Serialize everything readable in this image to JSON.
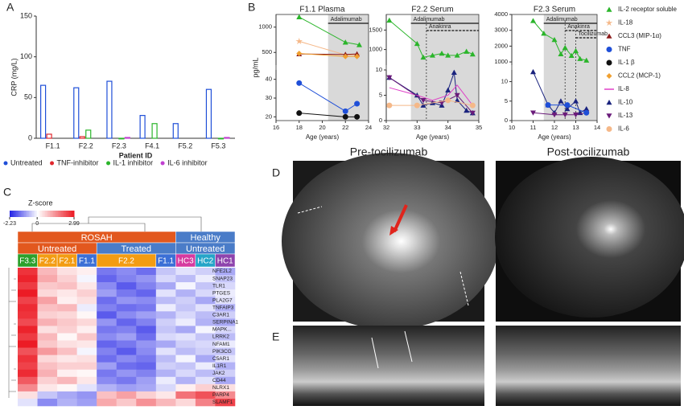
{
  "panels": {
    "a": "A",
    "b": "B",
    "c": "C",
    "d": "D",
    "e": "E"
  },
  "chart_data": [
    {
      "type": "bar",
      "ylabel": "CRP (mg/L)",
      "xlabel": "Patient ID",
      "categories": [
        "F1.1",
        "F2.2",
        "F2.3",
        "F4.1",
        "F5.2",
        "F5.3"
      ],
      "ylim": [
        0,
        150
      ],
      "yticks": [
        0,
        50,
        100,
        150
      ],
      "series": [
        {
          "name": "Untreated",
          "color": "#1f4fd8",
          "values": [
            65,
            62,
            70,
            28,
            18,
            60
          ]
        },
        {
          "name": "TNF-inhibitor",
          "color": "#e0282e",
          "values": [
            5,
            2,
            null,
            null,
            null,
            null
          ]
        },
        {
          "name": "IL-1 inhibitor",
          "color": "#2bb52b",
          "values": [
            null,
            10,
            0,
            18,
            null,
            0
          ]
        },
        {
          "name": "IL-6 inhibitor",
          "color": "#c040d0",
          "values": [
            null,
            null,
            1,
            null,
            null,
            1
          ]
        }
      ]
    },
    {
      "type": "line",
      "title": "F1.1 Plasma",
      "ylabel": "pg/mL",
      "xlabel": "Age (years)",
      "xlim": [
        16,
        24
      ],
      "xticks": [
        16,
        18,
        20,
        22,
        24
      ],
      "ysegments": [
        {
          "ylim": [
            18,
            45
          ],
          "yticks": [
            20,
            30,
            40
          ]
        },
        {
          "ylim": [
            250,
            1250
          ],
          "yticks": [
            500,
            1000
          ]
        }
      ],
      "drugs": [
        {
          "label": "Adalimumab",
          "from": 20.5,
          "to": 24
        }
      ],
      "series": [
        {
          "color": "#2bb52b",
          "marker": "triangle",
          "x": [
            18,
            22,
            23.2
          ],
          "values": [
            1200,
            700,
            650
          ]
        },
        {
          "color": "#f5b888",
          "marker": "star",
          "x": [
            18,
            22,
            23
          ],
          "values": [
            720,
            450,
            450
          ]
        },
        {
          "color": "#8b1a1a",
          "marker": "triangle",
          "x": [
            18,
            22,
            23
          ],
          "values": [
            470,
            460,
            470
          ]
        },
        {
          "color": "#f0a030",
          "marker": "diamond",
          "x": [
            18,
            22,
            23
          ],
          "values": [
            480,
            420,
            420
          ]
        },
        {
          "color": "#1f4fd8",
          "marker": "circle",
          "x": [
            18,
            22,
            23
          ],
          "values": [
            38,
            23,
            27
          ]
        },
        {
          "color": "#111111",
          "marker": "circle",
          "x": [
            18,
            22,
            23
          ],
          "values": [
            22,
            20,
            20
          ]
        }
      ]
    },
    {
      "type": "line",
      "title": "F2.2 Serum",
      "xlabel": "Age (years)",
      "xlim": [
        32,
        35
      ],
      "xticks": [
        32,
        33,
        34,
        35
      ],
      "ysegments": [
        {
          "ylim": [
            0,
            10
          ],
          "yticks": [
            0,
            5,
            10
          ]
        },
        {
          "ylim": [
            600,
            1900
          ],
          "yticks": [
            1000,
            1500
          ]
        }
      ],
      "drugs": [
        {
          "label": "Adalimumab",
          "from": 32.8,
          "to": 35
        },
        {
          "label": "Anakinra",
          "from": 33.3,
          "to": 35
        }
      ],
      "series": [
        {
          "color": "#2bb52b",
          "marker": "triangle",
          "x": [
            32.1,
            33,
            33.2,
            33.5,
            33.8,
            34,
            34.3,
            34.6,
            34.8
          ],
          "values": [
            1750,
            1150,
            800,
            850,
            900,
            850,
            850,
            950,
            880
          ]
        },
        {
          "color": "#1a237e",
          "marker": "triangle",
          "x": [
            32.1,
            33,
            33.2,
            33.5,
            33.8,
            34,
            34.2,
            34.3,
            34.6,
            34.8
          ],
          "values": [
            8.5,
            5,
            3,
            3.5,
            3,
            6,
            9.5,
            4,
            2,
            1.5
          ]
        },
        {
          "color": "#e040c8",
          "marker": "none",
          "x": [
            32.1,
            33,
            33.5,
            34,
            34.3,
            34.8
          ],
          "values": [
            6.5,
            5,
            4,
            5,
            7,
            3
          ]
        },
        {
          "color": "#6a1b7a",
          "marker": "tridown",
          "x": [
            32.1,
            33.2,
            33.8,
            34.3,
            34.8
          ],
          "values": [
            8.5,
            4,
            3.5,
            5,
            1.5
          ]
        },
        {
          "color": "#f5b888",
          "marker": "circle",
          "x": [
            32.1,
            33,
            34,
            34.8
          ],
          "values": [
            3,
            3,
            4,
            3
          ]
        }
      ]
    },
    {
      "type": "line",
      "title": "F2.3 Serum",
      "xlabel": "Age (years)",
      "xlim": [
        10,
        14
      ],
      "xticks": [
        10,
        11,
        12,
        13,
        14
      ],
      "ysegments": [
        {
          "ylim": [
            0,
            13
          ],
          "yticks": [
            0,
            5,
            10
          ]
        },
        {
          "ylim": [
            800,
            4000
          ],
          "yticks": [
            1000,
            2000,
            3000,
            4000
          ]
        }
      ],
      "drugs": [
        {
          "label": "Adalimumab",
          "from": 11.5,
          "to": 14
        },
        {
          "label": "Anakinra",
          "from": 12.5,
          "to": 14
        },
        {
          "label": "Tocilizumab",
          "from": 13,
          "to": 14
        }
      ],
      "series": [
        {
          "color": "#2bb52b",
          "marker": "triangle",
          "x": [
            11,
            11.5,
            12,
            12.3,
            12.5,
            12.8,
            13,
            13.2,
            13.5
          ],
          "values": [
            3600,
            2800,
            2400,
            1500,
            1900,
            1400,
            1700,
            1200,
            1100
          ]
        },
        {
          "color": "#1a237e",
          "marker": "triangle",
          "x": [
            11,
            11.7,
            12,
            12.3,
            12.6,
            13,
            13.2,
            13.5
          ],
          "values": [
            12.5,
            4,
            2,
            5,
            3,
            5,
            2,
            3
          ]
        },
        {
          "color": "#6a1b7a",
          "marker": "tridown",
          "x": [
            11,
            12,
            12.5,
            13,
            13.5
          ],
          "values": [
            2,
            1.5,
            1.5,
            1.5,
            2
          ]
        },
        {
          "color": "#1f4fd8",
          "marker": "circle",
          "x": [
            11.7,
            12.6,
            13.5
          ],
          "values": [
            4,
            4,
            2
          ]
        }
      ]
    }
  ],
  "legend_b": [
    {
      "name": "IL-2 receptor soluble",
      "color": "#2bb52b",
      "marker": "triangle"
    },
    {
      "name": "IL-18",
      "color": "#f5b888",
      "marker": "star"
    },
    {
      "name": "CCL3 (MIP-1α)",
      "color": "#8b1a1a",
      "marker": "triangle"
    },
    {
      "name": "TNF",
      "color": "#1f4fd8",
      "marker": "circle"
    },
    {
      "name": "IL-1 β",
      "color": "#111111",
      "marker": "circle"
    },
    {
      "name": "CCL2 (MCP-1)",
      "color": "#f0a030",
      "marker": "diamond"
    },
    {
      "name": "IL-8",
      "color": "#e040c8",
      "marker": "none"
    },
    {
      "name": "IL-10",
      "color": "#1a237e",
      "marker": "triangle"
    },
    {
      "name": "IL-13",
      "color": "#6a1b7a",
      "marker": "tridown"
    },
    {
      "name": "IL-6",
      "color": "#f5b888",
      "marker": "circle"
    }
  ],
  "heatmap": {
    "colorbar_title": "Z-score",
    "zlim": [
      -2.23,
      2.99
    ],
    "zticks": [
      {
        "value": -2.23,
        "label": "-2.23"
      },
      0,
      {
        "value": 2.99,
        "label": "2.99"
      }
    ],
    "groups": [
      {
        "label": "ROSAH",
        "span": 8,
        "color": "#e2581e"
      },
      {
        "label": "Healthy",
        "span": 3,
        "color": "#4a7cc8"
      }
    ],
    "subgroups": [
      {
        "label": "Untreated",
        "span": 4,
        "color": "#e2581e"
      },
      {
        "label": "Treated",
        "span": 4,
        "color": "#4a7cc8"
      },
      {
        "label": "Untreated",
        "span": 3,
        "color": "#4a7cc8"
      }
    ],
    "columns": [
      {
        "label": "F3.3",
        "span": 1,
        "color": "#2ca02c"
      },
      {
        "label": "F2.2",
        "span": 1,
        "color": "#f39c12"
      },
      {
        "label": "F2.1",
        "span": 1,
        "color": "#f39c12"
      },
      {
        "label": "F1.1",
        "span": 1,
        "color": "#3b6fd6"
      },
      {
        "label": "F2.2",
        "span": 3,
        "color": "#f39c12"
      },
      {
        "label": "F1.1",
        "span": 1,
        "color": "#3b6fd6"
      },
      {
        "label": "HC3",
        "span": 1,
        "color": "#d63aa0"
      },
      {
        "label": "HC2",
        "span": 1,
        "color": "#25a5c8"
      },
      {
        "label": "HC1",
        "span": 1,
        "color": "#8e44ad"
      }
    ],
    "genes": [
      "NFE2L2",
      "SNAP23",
      "TLR1",
      "PTGES",
      "PLA2G7",
      "TNFAIP3",
      "C3AR1",
      "SERPINA1",
      "MAPK...",
      "LRRK2",
      "NFAM1",
      "PIK3CG",
      "C5AR1",
      "IL1R1",
      "JAK2",
      "CD44",
      "NLRX1",
      "PARP4",
      "SLAMF1"
    ],
    "rows": [
      [
        2.6,
        0.9,
        0.4,
        0.2,
        -1.4,
        -1.2,
        -1.5,
        -0.6,
        -0.3,
        -0.5,
        -0.9
      ],
      [
        2.8,
        1.1,
        0.6,
        -0.1,
        -1.6,
        -1.3,
        -1.1,
        -0.4,
        -0.7,
        -0.2,
        -0.6
      ],
      [
        2.5,
        0.7,
        0.8,
        0.3,
        -1.2,
        -1.7,
        -1.3,
        -0.9,
        -0.1,
        -0.6,
        -0.4
      ],
      [
        2.9,
        0.5,
        0.3,
        0.6,
        -1.0,
        -1.4,
        -1.6,
        -0.3,
        -0.8,
        -0.4,
        -0.2
      ],
      [
        2.4,
        1.2,
        0.2,
        0.4,
        -1.5,
        -1.1,
        -1.2,
        -0.7,
        -0.5,
        -0.9,
        -0.3
      ],
      [
        2.7,
        0.8,
        0.9,
        -0.2,
        -1.3,
        -1.5,
        -1.4,
        -0.2,
        -0.6,
        -0.3,
        -0.8
      ],
      [
        2.6,
        0.6,
        0.5,
        0.1,
        -1.7,
        -1.2,
        -1.0,
        -0.8,
        -0.4,
        -0.7,
        -0.5
      ],
      [
        2.3,
        1.0,
        0.7,
        0.5,
        -1.1,
        -1.6,
        -1.3,
        -0.5,
        -0.2,
        -0.8,
        -0.9
      ],
      [
        2.8,
        0.4,
        0.6,
        0.2,
        -1.4,
        -1.3,
        -1.7,
        -0.6,
        -0.9,
        -0.1,
        -0.4
      ],
      [
        2.5,
        0.9,
        0.1,
        0.7,
        -1.2,
        -1.0,
        -1.5,
        -0.4,
        -0.3,
        -0.6,
        -0.7
      ],
      [
        2.9,
        0.7,
        0.4,
        0.3,
        -1.6,
        -1.4,
        -1.1,
        -0.9,
        -0.5,
        -0.4,
        -0.2
      ],
      [
        2.2,
        1.3,
        0.8,
        -0.1,
        -1.3,
        -1.7,
        -1.2,
        -0.3,
        -0.7,
        -0.5,
        -0.6
      ],
      [
        2.6,
        0.5,
        0.3,
        0.4,
        -1.5,
        -1.2,
        -1.4,
        -0.7,
        -0.1,
        -0.9,
        -0.3
      ],
      [
        2.4,
        0.8,
        0.6,
        0.6,
        -1.0,
        -1.5,
        -1.6,
        -0.5,
        -0.6,
        -0.2,
        -0.8
      ],
      [
        2.7,
        1.0,
        0.2,
        0.1,
        -1.4,
        -1.1,
        -1.3,
        -0.8,
        -0.4,
        -0.7,
        -0.5
      ],
      [
        2.1,
        0.6,
        0.9,
        0.3,
        -1.2,
        -1.4,
        -1.0,
        -0.2,
        -0.8,
        -0.3,
        -0.9
      ],
      [
        1.5,
        0.3,
        0.1,
        -0.3,
        -0.8,
        -1.0,
        -0.9,
        -0.4,
        0.2,
        0.6,
        0.4
      ],
      [
        0.4,
        -0.6,
        -0.9,
        -1.1,
        0.8,
        1.2,
        0.6,
        0.3,
        1.8,
        2.2,
        1.5
      ],
      [
        -0.3,
        -1.2,
        -0.8,
        -1.0,
        1.1,
        0.7,
        1.4,
        0.9,
        0.5,
        1.6,
        2.4
      ]
    ]
  },
  "imaging": {
    "pre": "Pre-tocilizumab",
    "post": "Post-tocilizumab"
  }
}
